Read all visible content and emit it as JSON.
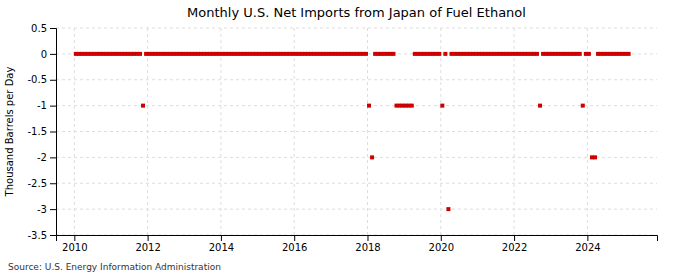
{
  "chart_data": {
    "type": "scatter",
    "title": "Monthly U.S. Net Imports from Japan of Fuel Ethanol",
    "ylabel": "Thousand Barrels per Day",
    "annotations": [
      "Source: U.S. Energy Information Administration"
    ],
    "x": [
      2010.0416666666667,
      2010.125,
      2010.2083333333333,
      2010.2916666666667,
      2010.375,
      2010.4583333333333,
      2010.5416666666667,
      2010.625,
      2010.7083333333333,
      2010.7916666666667,
      2010.875,
      2010.9583333333333,
      2011.0416666666667,
      2011.125,
      2011.2083333333333,
      2011.2916666666667,
      2011.375,
      2011.4583333333333,
      2011.5416666666667,
      2011.625,
      2011.7083333333333,
      2011.7916666666667,
      2011.875,
      2011.9583333333333,
      2012.0416666666667,
      2012.125,
      2012.2083333333333,
      2012.2916666666667,
      2012.375,
      2012.4583333333333,
      2012.5416666666667,
      2012.625,
      2012.7083333333333,
      2012.7916666666667,
      2012.875,
      2012.9583333333333,
      2013.0416666666667,
      2013.125,
      2013.2083333333333,
      2013.2916666666667,
      2013.375,
      2013.4583333333333,
      2013.5416666666667,
      2013.625,
      2013.7083333333333,
      2013.7916666666667,
      2013.875,
      2013.9583333333333,
      2014.0416666666667,
      2014.125,
      2014.2083333333333,
      2014.2916666666667,
      2014.375,
      2014.4583333333333,
      2014.5416666666667,
      2014.625,
      2014.7083333333333,
      2014.7916666666667,
      2014.875,
      2014.9583333333333,
      2015.0416666666667,
      2015.125,
      2015.2083333333333,
      2015.2916666666667,
      2015.375,
      2015.4583333333333,
      2015.5416666666667,
      2015.625,
      2015.7083333333333,
      2015.7916666666667,
      2015.875,
      2015.9583333333333,
      2016.0416666666667,
      2016.125,
      2016.2083333333333,
      2016.2916666666667,
      2016.375,
      2016.4583333333333,
      2016.5416666666667,
      2016.625,
      2016.7083333333333,
      2016.7916666666667,
      2016.875,
      2016.9583333333333,
      2017.0416666666667,
      2017.125,
      2017.2083333333333,
      2017.2916666666667,
      2017.375,
      2017.4583333333333,
      2017.5416666666667,
      2017.625,
      2017.7083333333333,
      2017.7916666666667,
      2017.875,
      2017.9583333333333,
      2018.0416666666667,
      2018.125,
      2018.2083333333333,
      2018.2916666666667,
      2018.375,
      2018.4583333333333,
      2018.5416666666667,
      2018.625,
      2018.7083333333333,
      2018.7916666666667,
      2018.875,
      2018.9583333333333,
      2019.0416666666667,
      2019.125,
      2019.2083333333333,
      2019.2916666666667,
      2019.375,
      2019.4583333333333,
      2019.5416666666667,
      2019.625,
      2019.7083333333333,
      2019.7916666666667,
      2019.875,
      2019.9583333333333,
      2020.0416666666667,
      2020.125,
      2020.2083333333333,
      2020.2916666666667,
      2020.375,
      2020.4583333333333,
      2020.5416666666667,
      2020.625,
      2020.7083333333333,
      2020.7916666666667,
      2020.875,
      2020.9583333333333,
      2021.0416666666667,
      2021.125,
      2021.2083333333333,
      2021.2916666666667,
      2021.375,
      2021.4583333333333,
      2021.5416666666667,
      2021.625,
      2021.7083333333333,
      2021.7916666666667,
      2021.875,
      2021.9583333333333,
      2022.0416666666667,
      2022.125,
      2022.2083333333333,
      2022.2916666666667,
      2022.375,
      2022.4583333333333,
      2022.5416666666667,
      2022.625,
      2022.7083333333333,
      2022.7916666666667,
      2022.875,
      2022.9583333333333,
      2023.0416666666667,
      2023.125,
      2023.2083333333333,
      2023.2916666666667,
      2023.375,
      2023.4583333333333,
      2023.5416666666667,
      2023.625,
      2023.7083333333333,
      2023.7916666666667,
      2023.875,
      2023.9583333333333,
      2024.0416666666667,
      2024.125,
      2024.2083333333333,
      2024.2916666666667,
      2024.375,
      2024.4583333333333,
      2024.5416666666667,
      2024.625,
      2024.7083333333333,
      2024.7916666666667,
      2024.875,
      2024.9583333333333,
      2025.0416666666667,
      2025.125
    ],
    "values": [
      0,
      0,
      0,
      0,
      0,
      0,
      0,
      0,
      0,
      0,
      0,
      0,
      0,
      0,
      0,
      0,
      0,
      0,
      0,
      0,
      0,
      0,
      -1,
      0,
      0,
      0,
      0,
      0,
      0,
      0,
      0,
      0,
      0,
      0,
      0,
      0,
      0,
      0,
      0,
      0,
      0,
      0,
      0,
      0,
      0,
      0,
      0,
      0,
      0,
      0,
      0,
      0,
      0,
      0,
      0,
      0,
      0,
      0,
      0,
      0,
      0,
      0,
      0,
      0,
      0,
      0,
      0,
      0,
      0,
      0,
      0,
      0,
      0,
      0,
      0,
      0,
      0,
      0,
      0,
      0,
      0,
      0,
      0,
      0,
      0,
      0,
      0,
      0,
      0,
      0,
      0,
      0,
      0,
      0,
      0,
      0,
      -1,
      -2,
      0,
      0,
      0,
      0,
      0,
      0,
      0,
      -1,
      -1,
      -1,
      -1,
      -1,
      -1,
      0,
      0,
      0,
      0,
      0,
      0,
      0,
      0,
      0,
      -1,
      0,
      -3,
      0,
      0,
      0,
      0,
      0,
      0,
      0,
      0,
      0,
      0,
      0,
      0,
      0,
      0,
      0,
      0,
      0,
      0,
      0,
      0,
      0,
      0,
      0,
      0,
      0,
      0,
      0,
      0,
      0,
      -1,
      0,
      0,
      0,
      0,
      0,
      0,
      0,
      0,
      0,
      0,
      0,
      0,
      0,
      -1,
      0,
      0,
      -2,
      -2,
      0,
      0,
      0,
      0,
      0,
      0,
      0,
      0,
      0,
      0,
      0
    ],
    "color": "#cc0000",
    "marker": "square",
    "xlim": [
      2009.5,
      2025.9
    ],
    "xticks": [
      2010,
      2012,
      2014,
      2016,
      2018,
      2020,
      2022,
      2024
    ],
    "ylim": [
      -3.5,
      0.5
    ],
    "yticks": [
      0.5,
      0,
      -0.5,
      -1,
      -1.5,
      -2,
      -2.5,
      -3,
      -3.5
    ],
    "grid": true
  }
}
